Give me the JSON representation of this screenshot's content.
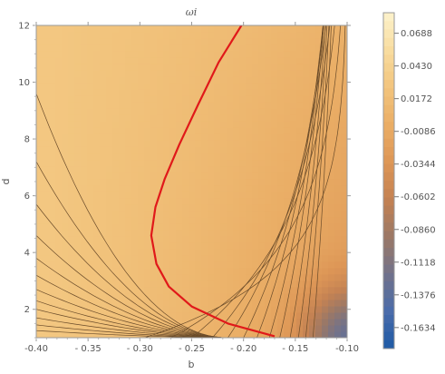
{
  "chart_data": {
    "type": "contour",
    "title": "ωi",
    "xlabel": "b",
    "ylabel": "d",
    "xlim": [
      -0.4,
      -0.1
    ],
    "ylim": [
      1.0,
      12.0
    ],
    "x_ticks": [
      -0.4,
      -0.35,
      -0.3,
      -0.25,
      -0.2,
      -0.15,
      -0.1
    ],
    "x_tick_labels": [
      "-0.40",
      "- 0.35",
      "- 0.30",
      "- 0.25",
      "- 0.20",
      "- 0.15",
      "-0.10"
    ],
    "y_ticks": [
      2,
      4,
      6,
      8,
      10,
      12
    ],
    "y_tick_labels": [
      "2",
      "4",
      "6",
      "8",
      "10",
      "12"
    ],
    "colorbar": {
      "range": [
        -0.18,
        0.085
      ],
      "tick_values": [
        0.0688,
        0.043,
        0.0172,
        -0.0086,
        -0.0344,
        -0.0602,
        -0.086,
        -0.1118,
        -0.1376,
        -0.1634
      ],
      "tick_labels": [
        "0.0688",
        "0.0430",
        "0.0172",
        "-0.0086",
        "-0.0344",
        "-0.0602",
        "-0.0860",
        "-0.1118",
        "-0.1376",
        "-0.1634"
      ],
      "colors": [
        "#fdf3cc",
        "#f8dc9f",
        "#f2c47d",
        "#eaae66",
        "#dd9656",
        "#c48253",
        "#9b7866",
        "#72728a",
        "#4a6caa",
        "#1e5aa6"
      ]
    },
    "zero_contour": {
      "color": "#e0191a",
      "points": [
        {
          "b": -0.17,
          "d": 1.05
        },
        {
          "b": -0.215,
          "d": 1.5
        },
        {
          "b": -0.25,
          "d": 2.1
        },
        {
          "b": -0.272,
          "d": 2.8
        },
        {
          "b": -0.284,
          "d": 3.6
        },
        {
          "b": -0.289,
          "d": 4.6
        },
        {
          "b": -0.285,
          "d": 5.6
        },
        {
          "b": -0.276,
          "d": 6.6
        },
        {
          "b": -0.262,
          "d": 7.8
        },
        {
          "b": -0.244,
          "d": 9.2
        },
        {
          "b": -0.224,
          "d": 10.7
        },
        {
          "b": -0.202,
          "d": 12.0
        }
      ]
    }
  }
}
